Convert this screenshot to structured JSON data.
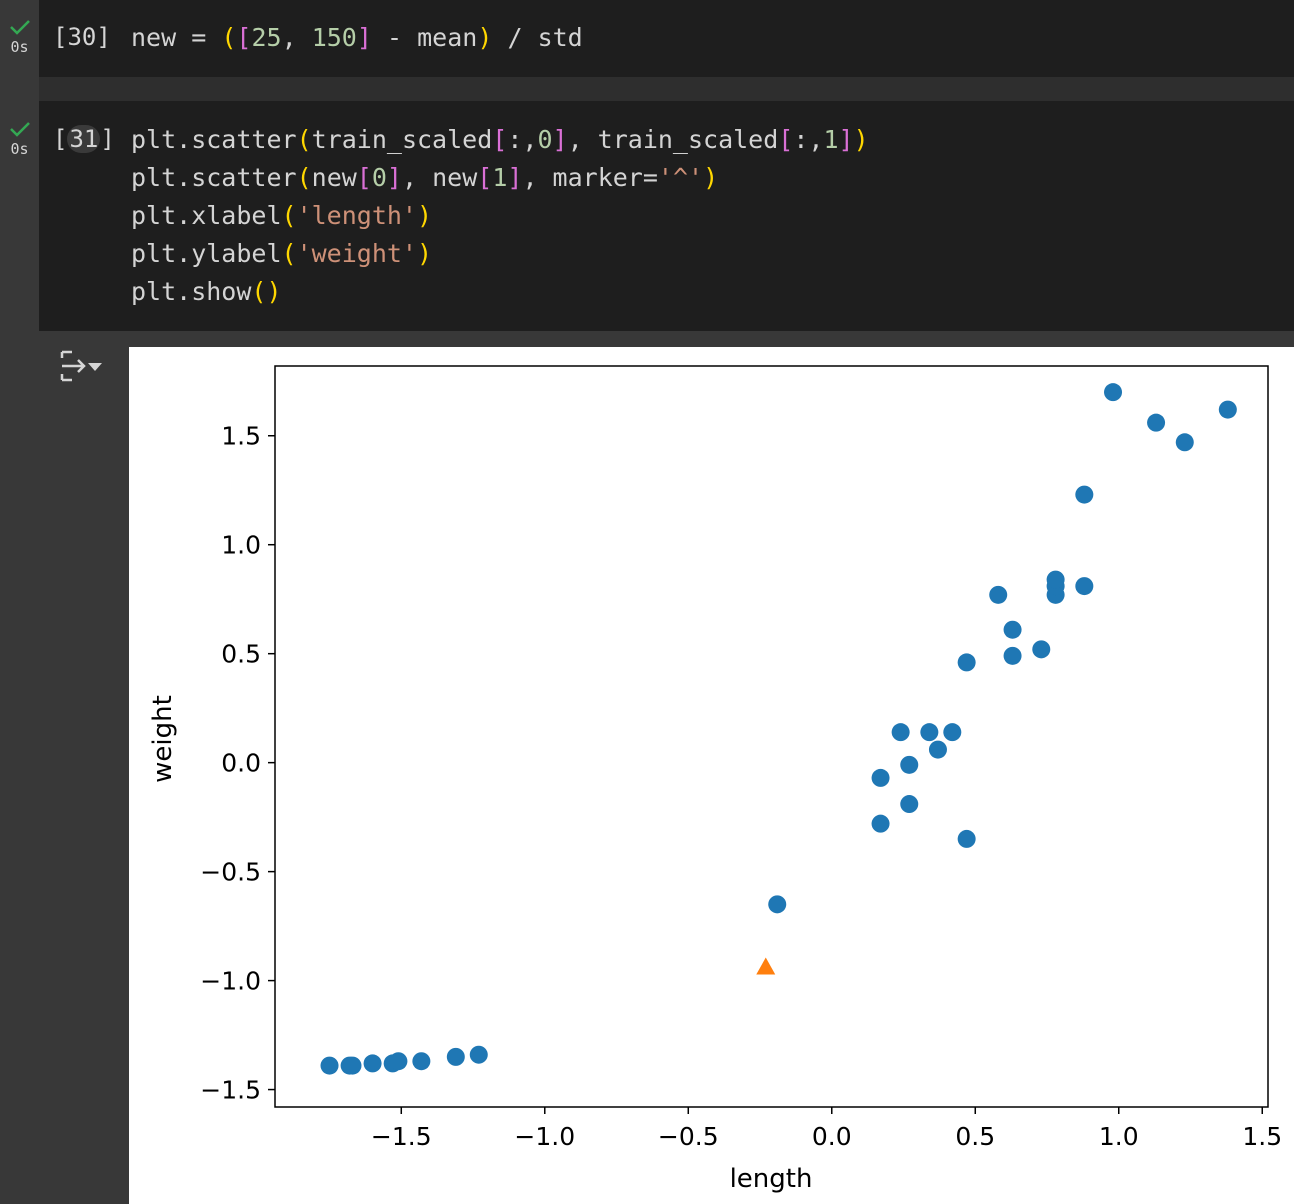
{
  "cells": [
    {
      "prompt": "[30]",
      "exec_time": "0s",
      "code_line": [
        "new",
        "=",
        "(",
        "[",
        "25",
        ",",
        "150",
        "]",
        "-",
        "mean",
        ")",
        "/",
        "std"
      ]
    },
    {
      "prompt_open": "[",
      "prompt_num": "31",
      "prompt_close": "]",
      "exec_time": "0s",
      "lines": [
        "plt.scatter(train_scaled[:,0], train_scaled[:,1])",
        "plt.scatter(new[0], new[1], marker='^')",
        "plt.xlabel('length')",
        "plt.ylabel('weight')",
        "plt.show()"
      ]
    }
  ],
  "output_toggle_icon": "collapse-output-icon",
  "colors": {
    "series_blue": "#1f77b4",
    "series_orange": "#ff7f0e",
    "check_green": "#34a853"
  },
  "chart_data": {
    "type": "scatter",
    "xlabel": "length",
    "ylabel": "weight",
    "xlim": [
      -1.94,
      1.52
    ],
    "ylim": [
      -1.58,
      1.82
    ],
    "xticks": [
      -1.5,
      -1.0,
      -0.5,
      0.0,
      0.5,
      1.0,
      1.5
    ],
    "yticks": [
      -1.5,
      -1.0,
      -0.5,
      0.0,
      0.5,
      1.0,
      1.5
    ],
    "xtick_labels": [
      "−1.5",
      "−1.0",
      "−0.5",
      "0.0",
      "0.5",
      "1.0",
      "1.5"
    ],
    "ytick_labels": [
      "−1.5",
      "−1.0",
      "−0.5",
      "0.0",
      "0.5",
      "1.0",
      "1.5"
    ],
    "grid": false,
    "series": [
      {
        "marker": "o",
        "color": "#1f77b4",
        "points": [
          [
            -1.75,
            -1.39
          ],
          [
            -1.68,
            -1.39
          ],
          [
            -1.67,
            -1.39
          ],
          [
            -1.6,
            -1.38
          ],
          [
            -1.53,
            -1.38
          ],
          [
            -1.51,
            -1.37
          ],
          [
            -1.43,
            -1.37
          ],
          [
            -1.31,
            -1.35
          ],
          [
            -1.23,
            -1.34
          ],
          [
            -0.19,
            -0.65
          ],
          [
            0.17,
            -0.28
          ],
          [
            0.17,
            -0.07
          ],
          [
            0.27,
            -0.19
          ],
          [
            0.27,
            -0.01
          ],
          [
            0.24,
            0.14
          ],
          [
            0.34,
            0.14
          ],
          [
            0.37,
            0.06
          ],
          [
            0.42,
            0.14
          ],
          [
            0.47,
            -0.35
          ],
          [
            0.47,
            0.46
          ],
          [
            0.58,
            0.77
          ],
          [
            0.63,
            0.61
          ],
          [
            0.63,
            0.49
          ],
          [
            0.73,
            0.52
          ],
          [
            0.78,
            0.77
          ],
          [
            0.78,
            0.81
          ],
          [
            0.78,
            0.84
          ],
          [
            0.88,
            0.81
          ],
          [
            0.88,
            1.23
          ],
          [
            0.98,
            1.7
          ],
          [
            1.13,
            1.56
          ],
          [
            1.23,
            1.47
          ],
          [
            1.38,
            1.62
          ]
        ]
      },
      {
        "marker": "^",
        "color": "#ff7f0e",
        "points": [
          [
            -0.23,
            -0.94
          ]
        ]
      }
    ]
  }
}
